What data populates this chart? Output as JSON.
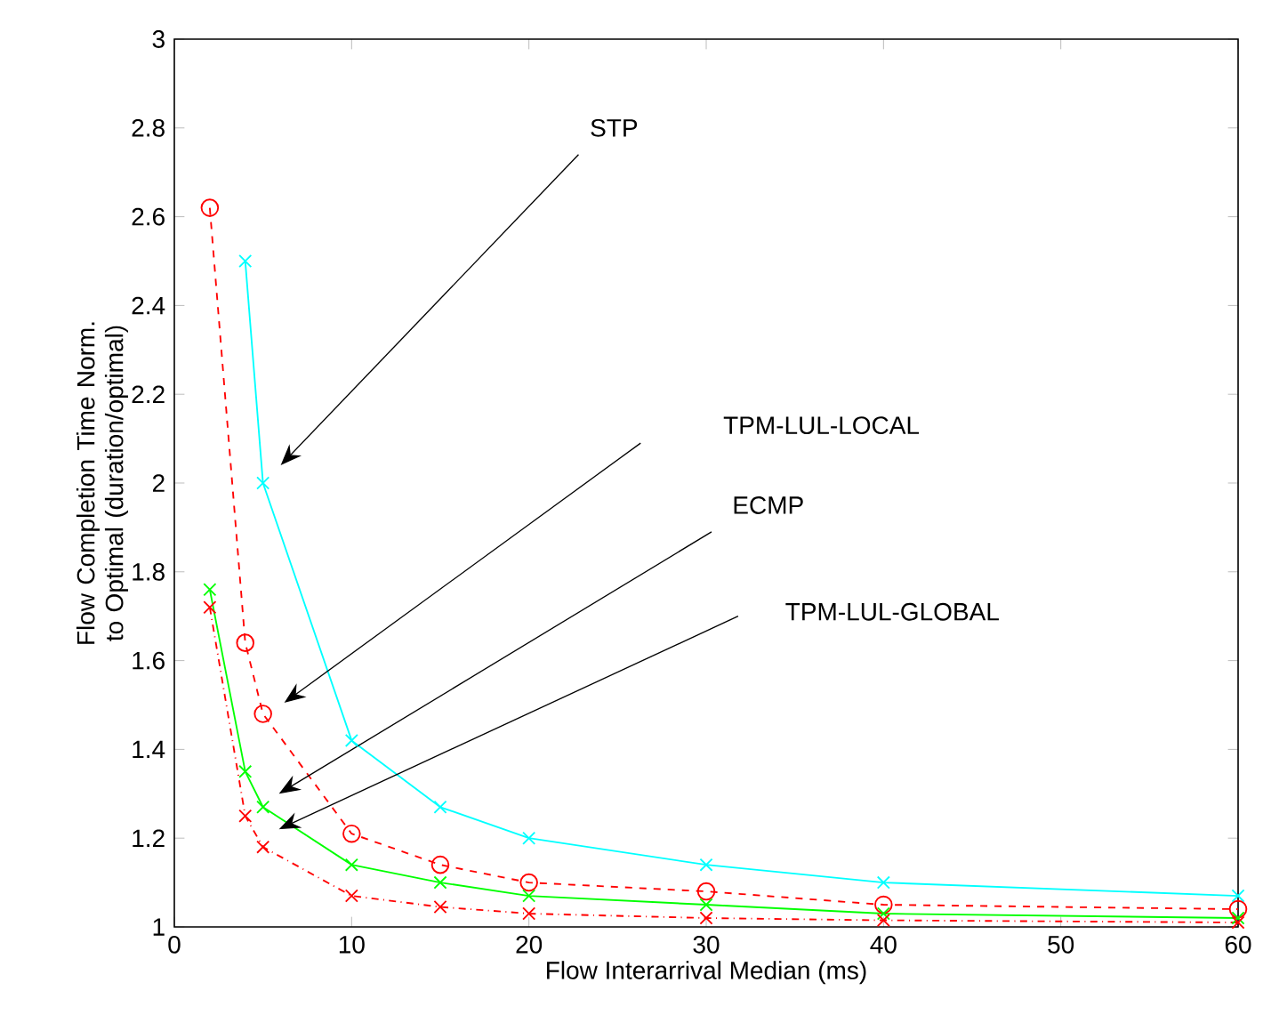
{
  "chart_data": {
    "type": "line",
    "xlabel": "Flow Interarrival Median (ms)",
    "ylabel": "Flow Completion Time Norm. to Optimal (duration/optimal)",
    "x": [
      2,
      4,
      5,
      10,
      15,
      20,
      30,
      40,
      60
    ],
    "series": [
      {
        "color": "#00ffff",
        "marker": "cross",
        "line_style": "solid",
        "values": [
          null,
          2.5,
          2.0,
          1.42,
          1.27,
          1.2,
          1.14,
          1.1,
          1.07
        ]
      },
      {
        "color": "#ff0000",
        "marker": "circle",
        "line_style": "dashed",
        "values": [
          2.62,
          1.64,
          1.48,
          1.21,
          1.14,
          1.1,
          1.08,
          1.05,
          1.04
        ]
      },
      {
        "color": "#00ff00",
        "marker": "cross",
        "line_style": "solid",
        "values": [
          1.76,
          1.35,
          1.27,
          1.14,
          1.1,
          1.07,
          1.05,
          1.03,
          1.02
        ]
      },
      {
        "color": "#ff0000",
        "marker": "cross",
        "line_style": "dashdot",
        "values": [
          1.72,
          1.25,
          1.18,
          1.07,
          1.045,
          1.03,
          1.02,
          1.015,
          1.01
        ]
      }
    ],
    "annotations": [
      "STP",
      "TPM-LUL-LOCAL",
      "ECMP",
      "TPM-LUL-GLOBAL"
    ],
    "xlim": [
      0,
      60
    ],
    "ylim": [
      1,
      3
    ],
    "xticks": [
      0,
      10,
      20,
      30,
      40,
      50,
      60
    ],
    "yticks": [
      1,
      1.2,
      1.4,
      1.6,
      1.8,
      2,
      2.2,
      2.4,
      2.6,
      2.8,
      3
    ],
    "grid": false
  }
}
